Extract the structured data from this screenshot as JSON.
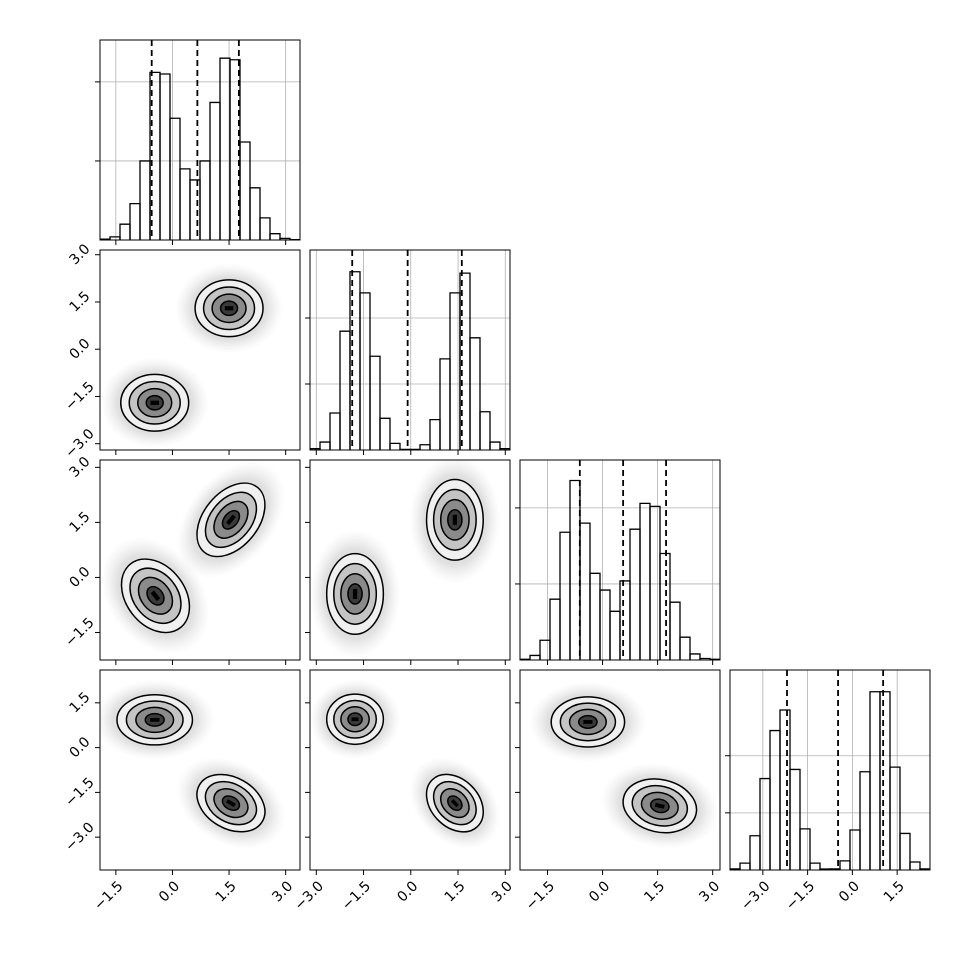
{
  "chart_data": {
    "type": "corner",
    "grid": true,
    "color": "#000000",
    "levels": [
      0.5,
      1,
      1.5,
      2
    ],
    "params": [
      {
        "xlim": [
          -1.92,
          3.38
        ],
        "xticks": [
          {
            "value": -1.5,
            "label": "−1.5"
          },
          {
            "value": 0,
            "label": "0.0"
          },
          1.5,
          {
            "value": 3,
            "label": "3.0"
          }
        ],
        "bins": [
          -1.92,
          -1.655,
          -1.39,
          -1.125,
          -0.86,
          -0.595,
          -0.33,
          -0.065,
          0.2,
          0.465,
          0.73,
          0.995,
          1.26,
          1.525,
          1.79,
          2.055,
          2.32,
          2.585,
          2.85,
          3.115,
          3.38
        ],
        "counts": [
          5,
          20,
          100,
          230,
          500,
          1060,
          1050,
          770,
          450,
          380,
          500,
          870,
          1150,
          1140,
          620,
          330,
          140,
          40,
          10,
          2
        ],
        "quantiles": [
          -0.55,
          0.66,
          1.76
        ],
        "hist_ylim": [
          0,
          1265
        ],
        "hist_yticks": [
          500,
          1000
        ]
      },
      {
        "xlim": [
          -3.2,
          3.15
        ],
        "xticks": [
          {
            "value": -3,
            "label": "−3.0"
          },
          {
            "value": -1.5,
            "label": "−1.5"
          },
          {
            "value": 0,
            "label": "0.0"
          },
          1.5,
          {
            "value": 3,
            "label": "3.0"
          }
        ],
        "bins": [
          -3.2,
          -2.8825,
          -2.565,
          -2.2475,
          -1.93,
          -1.6125,
          -1.295,
          -0.9775,
          -0.66,
          -0.3425,
          -0.025,
          0.2925,
          0.61,
          0.9275,
          1.245,
          1.5625,
          1.88,
          2.1975,
          2.515,
          2.8325,
          3.15
        ],
        "counts": [
          10,
          60,
          280,
          900,
          1350,
          1190,
          710,
          240,
          50,
          5,
          5,
          40,
          230,
          690,
          1190,
          1340,
          850,
          290,
          60,
          10
        ],
        "quantiles": [
          -1.86,
          -0.1,
          1.62
        ],
        "hist_ylim": [
          0,
          1515
        ],
        "hist_yticks": [
          500,
          1000
        ]
      },
      {
        "xlim": [
          -2.25,
          3.2
        ],
        "xticks": [
          {
            "value": -1.5,
            "label": "−1.5"
          },
          {
            "value": 0,
            "label": "0.0"
          },
          1.5,
          {
            "value": 3,
            "label": "3.0"
          }
        ],
        "bins": [
          -2.25,
          -1.9775,
          -1.705,
          -1.4325,
          -1.16,
          -0.8875,
          -0.615,
          -0.3425,
          -0.07,
          0.2025,
          0.475,
          0.7475,
          1.02,
          1.2925,
          1.565,
          1.8375,
          2.11,
          2.3825,
          2.655,
          2.9275,
          3.2
        ],
        "counts": [
          5,
          30,
          130,
          400,
          840,
          1180,
          900,
          570,
          460,
          320,
          520,
          860,
          1030,
          1010,
          700,
          380,
          150,
          40,
          10,
          5
        ],
        "quantiles": [
          -0.62,
          0.56,
          1.73
        ],
        "hist_ylim": [
          0,
          1315
        ],
        "hist_yticks": [
          500,
          1000
        ]
      },
      {
        "xlim": [
          -4.1,
          2.6
        ],
        "xticks": [
          {
            "value": -3,
            "label": "−3.0"
          },
          {
            "value": -1.5,
            "label": "−1.5"
          },
          {
            "value": 0,
            "label": "0.0"
          },
          1.5
        ],
        "bins": [
          -4.1,
          -3.765,
          -3.43,
          -3.095,
          -2.76,
          -2.425,
          -2.09,
          -1.755,
          -1.42,
          -1.085,
          -0.75,
          -0.415,
          -0.08,
          0.255,
          0.59,
          0.925,
          1.26,
          1.595,
          1.93,
          2.265,
          2.6
        ],
        "counts": [
          10,
          60,
          300,
          800,
          1220,
          1400,
          880,
          360,
          60,
          8,
          10,
          80,
          350,
          860,
          1560,
          1560,
          900,
          320,
          70,
          10
        ],
        "quantiles": [
          -2.19,
          -0.48,
          1.03
        ],
        "hist_ylim": [
          0,
          1750
        ],
        "hist_yticks": [
          500,
          1000
        ]
      }
    ],
    "pairs": [
      [
        {
          "clusters": [
            {
              "center": [
                1.5,
                1.3
              ],
              "sigma": [
                0.45,
                0.45
              ],
              "rho": 0
            },
            {
              "center": [
                -0.47,
                -1.7
              ],
              "sigma": [
                0.45,
                0.45
              ],
              "rho": 0
            }
          ]
        }
      ],
      [
        {
          "clusters": [
            {
              "center": [
                1.55,
                1.57
              ],
              "sigma": [
                0.45,
                0.5
              ],
              "rho": 0.4
            },
            {
              "center": [
                -0.45,
                -0.5
              ],
              "sigma": [
                0.45,
                0.5
              ],
              "rho": -0.3
            }
          ]
        },
        {
          "clusters": [
            {
              "center": [
                1.4,
                1.57
              ],
              "sigma": [
                0.45,
                0.55
              ],
              "rho": 0
            },
            {
              "center": [
                -1.77,
                -0.45
              ],
              "sigma": [
                0.45,
                0.55
              ],
              "rho": 0
            }
          ]
        }
      ],
      [
        {
          "clusters": [
            {
              "center": [
                -0.47,
                0.93
              ],
              "sigma": [
                0.5,
                0.42
              ],
              "rho": 0
            },
            {
              "center": [
                1.55,
                -1.86
              ],
              "sigma": [
                0.45,
                0.48
              ],
              "rho": -0.3
            }
          ]
        },
        {
          "clusters": [
            {
              "center": [
                -1.77,
                0.95
              ],
              "sigma": [
                0.45,
                0.42
              ],
              "rho": 0
            },
            {
              "center": [
                1.4,
                -1.86
              ],
              "sigma": [
                0.45,
                0.48
              ],
              "rho": -0.3
            }
          ]
        },
        {
          "clusters": [
            {
              "center": [
                -0.4,
                0.86
              ],
              "sigma": [
                0.5,
                0.42
              ],
              "rho": 0
            },
            {
              "center": [
                1.56,
                -1.95
              ],
              "sigma": [
                0.5,
                0.45
              ],
              "rho": -0.15
            }
          ]
        }
      ]
    ]
  }
}
